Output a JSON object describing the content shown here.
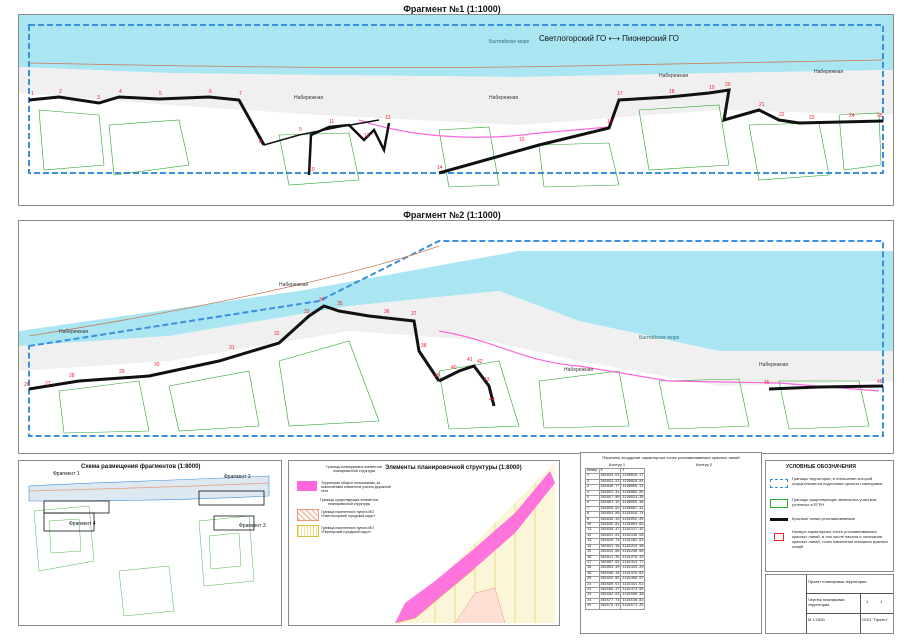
{
  "fragment1": {
    "title": "Фрагмент №1 (1:1000)",
    "boundary_label": "Светлогорский ГО ⟷ Пионерский ГО",
    "street_labels": [
      "Набережная",
      "Набережная",
      "Набережная",
      "Набережная",
      "Набережная"
    ],
    "sea_label": "Балтийское море",
    "point_labels": [
      "1",
      "2",
      "3",
      "4",
      "5",
      "6",
      "7",
      "8",
      "9",
      "10",
      "11",
      "12",
      "13",
      "14",
      "15",
      "16",
      "17",
      "18",
      "19",
      "20",
      "21",
      "22",
      "23",
      "24",
      "25"
    ]
  },
  "fragment2": {
    "title": "Фрагмент №2 (1:1000)",
    "street_labels": [
      "Набережная",
      "Набережная",
      "Набережная",
      "Набережная"
    ],
    "sea_label": "Балтийское море",
    "point_labels": [
      "26",
      "27",
      "28",
      "29",
      "30",
      "31",
      "32",
      "33",
      "34",
      "35",
      "36",
      "37",
      "38",
      "39",
      "40",
      "41",
      "42",
      "43",
      "44",
      "45",
      "46",
      "47",
      "48",
      "49",
      "50"
    ]
  },
  "scheme": {
    "title": "Схема размещения фрагментов (1:8000)",
    "fragment_labels": [
      "Фрагмент 1",
      "Фрагмент 2",
      "Фрагмент 3",
      "Фрагмент 4"
    ]
  },
  "elements": {
    "title": "Элементы планировочной структуры (1:8000)",
    "legend_header": "Границы планируемых элементов планировочной структуры",
    "legend_items": [
      "Территория общего пользования, за исключением элементов улично-дорожной сети",
      "Границы существующих элементов планировочной структуры",
      "Граница населенного пункта МО «Светлогорский городской округ»",
      "Граница населенного пункта МО «Пионерский городской округ»"
    ]
  },
  "coordinates": {
    "title": "Перечень координат характерных точек устанавливаемых красных линий",
    "contour1_label": "Контур 1",
    "contour2_label": "Контур 2",
    "headers": [
      "Номер",
      "X",
      "Y"
    ],
    "rows": [
      [
        "1",
        "361643.52",
        "1190810.17"
      ],
      [
        "2",
        "361651.23",
        "1190824.84"
      ],
      [
        "3",
        "361648.77",
        "1190856.12"
      ],
      [
        "4",
        "361652.41",
        "1190889.05"
      ],
      [
        "5",
        "361657.80",
        "1190921.38"
      ],
      [
        "6",
        "361661.15",
        "1190955.46"
      ],
      [
        "7",
        "361658.92",
        "1190987.31"
      ],
      [
        "8",
        "361654.06",
        "1191019.74"
      ],
      [
        "9",
        "361649.33",
        "1191052.20"
      ],
      [
        "10",
        "361645.81",
        "1191084.63"
      ],
      [
        "11",
        "361638.47",
        "1191117.15"
      ],
      [
        "12",
        "361631.02",
        "1191149.58"
      ],
      [
        "13",
        "361626.74",
        "1191182.01"
      ],
      [
        "14",
        "361621.19",
        "1191214.46"
      ],
      [
        "15",
        "361615.88",
        "1191246.90"
      ],
      [
        "16",
        "361611.35",
        "1191279.32"
      ],
      [
        "17",
        "361607.62",
        "1191311.77"
      ],
      [
        "18",
        "361603.40",
        "1191344.20"
      ],
      [
        "19",
        "361599.16",
        "1191376.64"
      ],
      [
        "20",
        "361594.85",
        "1191409.07"
      ],
      [
        "21",
        "361590.51",
        "1191441.51"
      ],
      [
        "22",
        "361586.27",
        "1191473.95"
      ],
      [
        "23",
        "361582.03",
        "1191506.38"
      ],
      [
        "24",
        "361577.74",
        "1191538.82"
      ],
      [
        "25",
        "361573.42",
        "1191571.25"
      ]
    ]
  },
  "legend": {
    "title": "УСЛОВНЫЕ ОБОЗНАЧЕНИЯ",
    "items": [
      "Границы территории, в отношении которой осуществляется подготовка проекта планировки",
      "Границы существующих земельных участков, учтенных в ЕГРН",
      "Красные линии устанавливаемые",
      "Номера характерных точек устанавливаемых красных линий, в том числе начала и окончания красных линий, точек изменения описания красных линий"
    ]
  },
  "title_block": {
    "project": "Проект планировки территории",
    "sheet_name": "Чертеж планировки территории",
    "scale": "М 1:1000",
    "org": "ООО \"Проект\"",
    "sheet": "1",
    "sheets": "1"
  },
  "colors": {
    "sea": "#a9e6f2",
    "beach": "#f1f1f1",
    "red_line": "#111111",
    "project_boundary": "#3b8fe0",
    "parcels": "#27a327",
    "public_area": "#ff66dd",
    "mo_boundary": "#e89a7a"
  }
}
